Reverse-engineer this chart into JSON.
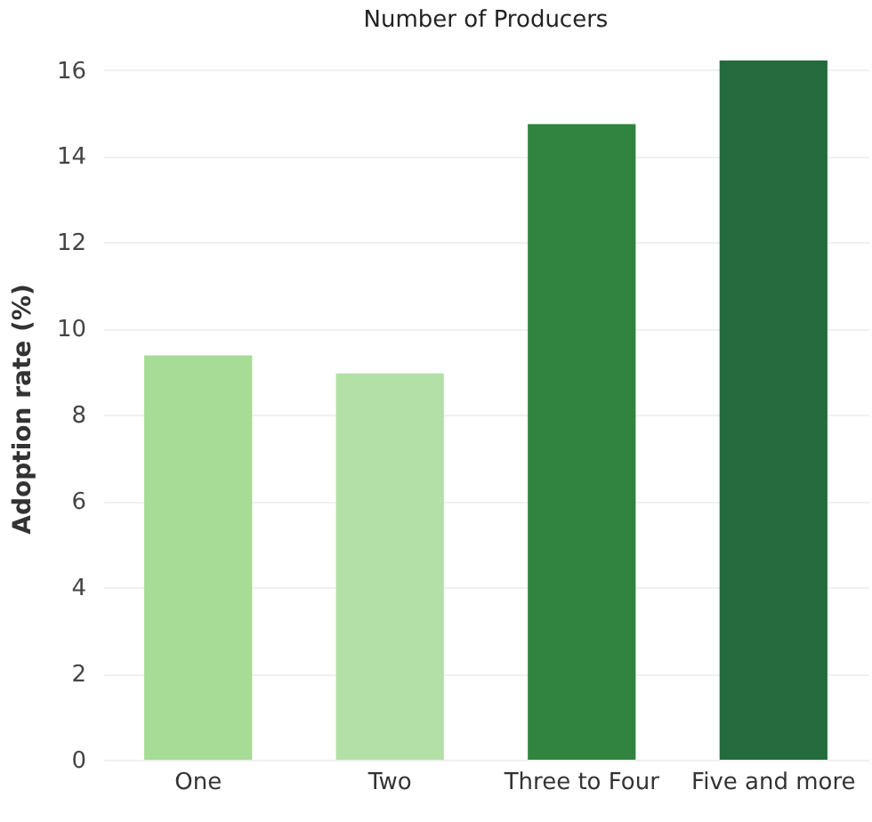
{
  "chart_data": {
    "type": "bar",
    "title": "Number of Producers",
    "ylabel": "Adoption rate (%)",
    "categories": [
      "One",
      "Two",
      "Three to Four",
      "Five and more"
    ],
    "values": [
      9.38,
      8.96,
      14.74,
      16.22
    ],
    "colors": [
      "#a6dc95",
      "#b3e0a6",
      "#31843f",
      "#246b3d"
    ],
    "ylim": [
      0,
      16.3
    ],
    "yticks": [
      0,
      2,
      4,
      6,
      8,
      10,
      12,
      14,
      16
    ],
    "grid": "y",
    "legend": false
  }
}
